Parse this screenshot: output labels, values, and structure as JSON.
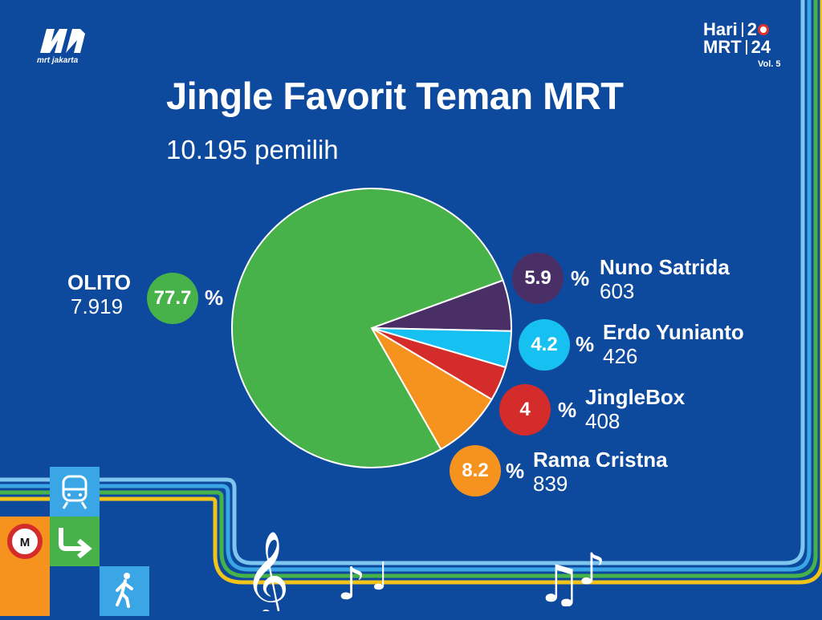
{
  "logo": {
    "text": "mrt jakarta"
  },
  "event": {
    "line1_left": "Hari",
    "line1_right": "2",
    "line1_tail": "",
    "line2_left": "MRT",
    "line2_right": "24",
    "volume": "Vol. 5"
  },
  "chart_data": {
    "type": "pie",
    "title": "Jingle Favorit Teman MRT",
    "subtitle": "10.195 pemilih",
    "percent_symbol": "%",
    "slices": [
      {
        "name": "OLITO",
        "percent": "77.7",
        "votes": "7.919",
        "value": 77.7,
        "color": "#47b24a"
      },
      {
        "name": "Nuno Satrida",
        "percent": "5.9",
        "votes": "603",
        "value": 5.9,
        "color": "#4a2f66"
      },
      {
        "name": "Erdo Yunianto",
        "percent": "4.2",
        "votes": "426",
        "value": 4.2,
        "color": "#16c0f0"
      },
      {
        "name": "JingleBox",
        "percent": "4",
        "votes": "408",
        "value": 4.0,
        "color": "#d42b2b"
      },
      {
        "name": "Rama Cristna",
        "percent": "8.2",
        "votes": "839",
        "value": 8.2,
        "color": "#f6921e"
      }
    ]
  },
  "icons": [
    "mrt-logo-icon",
    "train-icon",
    "metro-m-icon",
    "arrow-right-icon",
    "pedestrian-icon",
    "treble-clef-icon",
    "music-note-icon"
  ],
  "colors": {
    "background": "#0d4a9e",
    "stripe_light": "#7ec6ee",
    "stripe_sky": "#3aa6e6",
    "stripe_green": "#47b24a",
    "stripe_yellow": "#f2c318"
  }
}
